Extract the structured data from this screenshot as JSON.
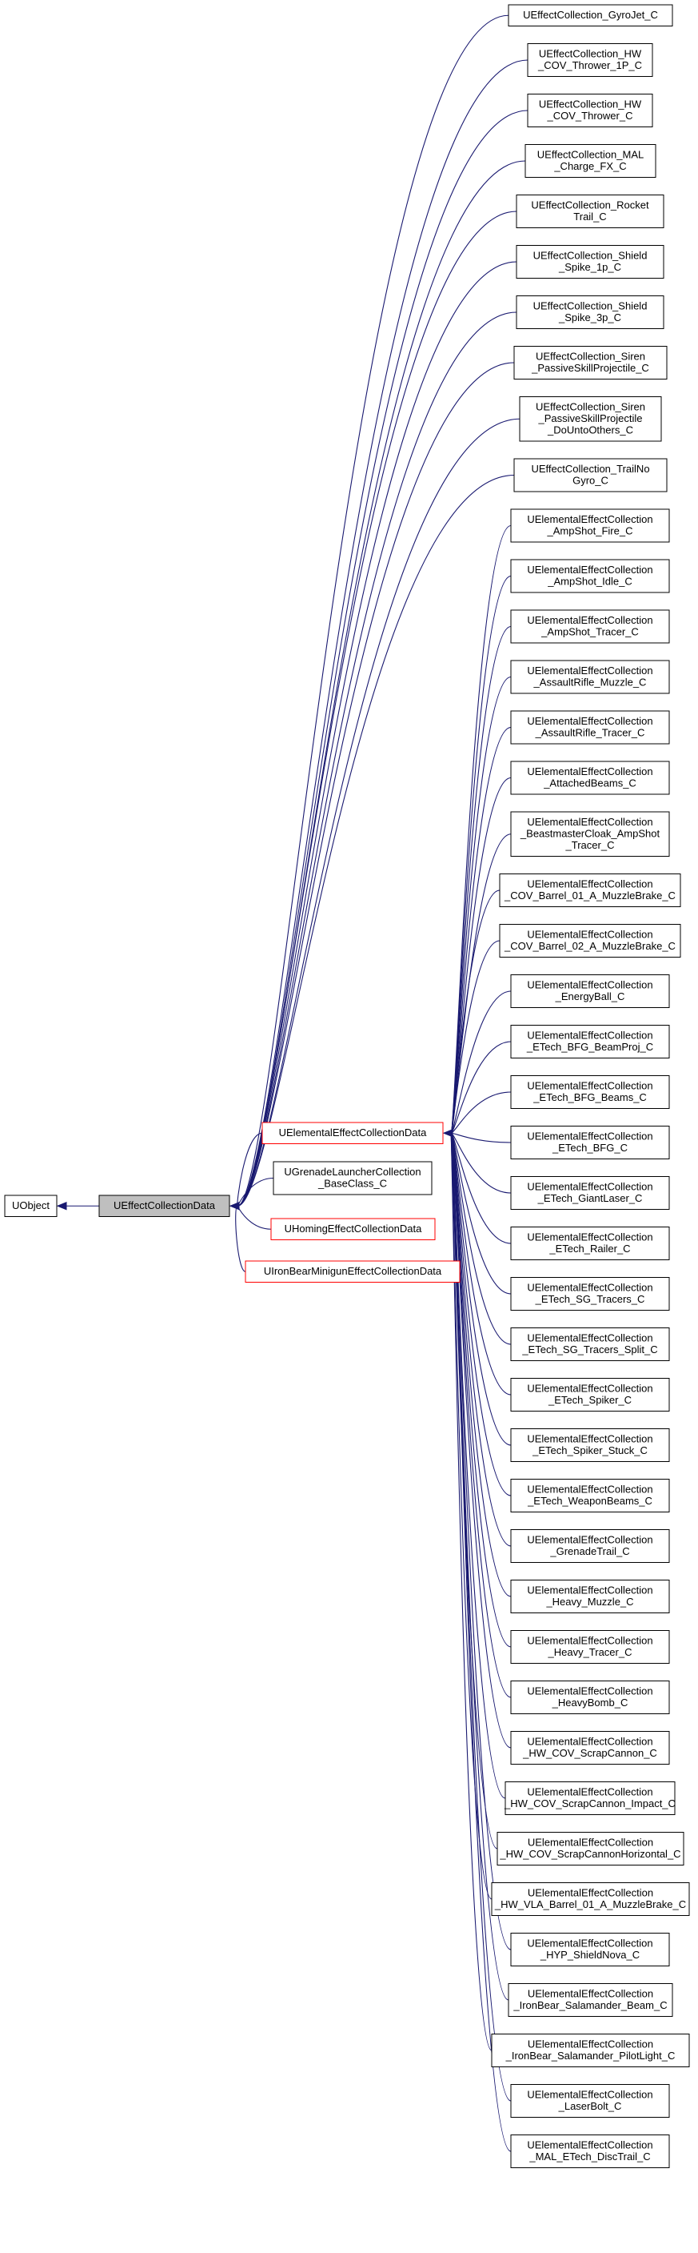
{
  "diagram": {
    "root": {
      "lines": [
        "UObject"
      ]
    },
    "base": {
      "lines": [
        "UEffectCollectionData"
      ]
    },
    "mid_children": [
      {
        "id": "elemental",
        "lines": [
          "UElementalEffectCollectionData"
        ],
        "style": "red"
      },
      {
        "id": "grenade",
        "lines": [
          "UGrenadeLauncherCollection",
          "_BaseClass_C"
        ],
        "style": "black"
      },
      {
        "id": "homing",
        "lines": [
          "UHomingEffectCollectionData"
        ],
        "style": "red"
      },
      {
        "id": "ironbear",
        "lines": [
          "UIronBearMinigunEffectCollectionData"
        ],
        "style": "red"
      }
    ],
    "base_leaves": [
      {
        "lines": [
          "UEffectCollection_GyroJet_C"
        ]
      },
      {
        "lines": [
          "UEffectCollection_HW",
          "_COV_Thrower_1P_C"
        ]
      },
      {
        "lines": [
          "UEffectCollection_HW",
          "_COV_Thrower_C"
        ]
      },
      {
        "lines": [
          "UEffectCollection_MAL",
          "_Charge_FX_C"
        ]
      },
      {
        "lines": [
          "UEffectCollection_Rocket",
          "Trail_C"
        ]
      },
      {
        "lines": [
          "UEffectCollection_Shield",
          "_Spike_1p_C"
        ]
      },
      {
        "lines": [
          "UEffectCollection_Shield",
          "_Spike_3p_C"
        ]
      },
      {
        "lines": [
          "UEffectCollection_Siren",
          "_PassiveSkillProjectile_C"
        ]
      },
      {
        "lines": [
          "UEffectCollection_Siren",
          "_PassiveSkillProjectile",
          "_DoUntoOthers_C"
        ]
      },
      {
        "lines": [
          "UEffectCollection_TrailNo",
          "Gyro_C"
        ]
      }
    ],
    "elemental_leaves": [
      {
        "lines": [
          "UElementalEffectCollection",
          "_AmpShot_Fire_C"
        ]
      },
      {
        "lines": [
          "UElementalEffectCollection",
          "_AmpShot_Idle_C"
        ]
      },
      {
        "lines": [
          "UElementalEffectCollection",
          "_AmpShot_Tracer_C"
        ]
      },
      {
        "lines": [
          "UElementalEffectCollection",
          "_AssaultRifle_Muzzle_C"
        ]
      },
      {
        "lines": [
          "UElementalEffectCollection",
          "_AssaultRifle_Tracer_C"
        ]
      },
      {
        "lines": [
          "UElementalEffectCollection",
          "_AttachedBeams_C"
        ]
      },
      {
        "lines": [
          "UElementalEffectCollection",
          "_BeastmasterCloak_AmpShot",
          "_Tracer_C"
        ]
      },
      {
        "lines": [
          "UElementalEffectCollection",
          "_COV_Barrel_01_A_MuzzleBrake_C"
        ]
      },
      {
        "lines": [
          "UElementalEffectCollection",
          "_COV_Barrel_02_A_MuzzleBrake_C"
        ]
      },
      {
        "lines": [
          "UElementalEffectCollection",
          "_EnergyBall_C"
        ]
      },
      {
        "lines": [
          "UElementalEffectCollection",
          "_ETech_BFG_BeamProj_C"
        ]
      },
      {
        "lines": [
          "UElementalEffectCollection",
          "_ETech_BFG_Beams_C"
        ]
      },
      {
        "lines": [
          "UElementalEffectCollection",
          "_ETech_BFG_C"
        ]
      },
      {
        "lines": [
          "UElementalEffectCollection",
          "_ETech_GiantLaser_C"
        ]
      },
      {
        "lines": [
          "UElementalEffectCollection",
          "_ETech_Railer_C"
        ]
      },
      {
        "lines": [
          "UElementalEffectCollection",
          "_ETech_SG_Tracers_C"
        ]
      },
      {
        "lines": [
          "UElementalEffectCollection",
          "_ETech_SG_Tracers_Split_C"
        ]
      },
      {
        "lines": [
          "UElementalEffectCollection",
          "_ETech_Spiker_C"
        ]
      },
      {
        "lines": [
          "UElementalEffectCollection",
          "_ETech_Spiker_Stuck_C"
        ]
      },
      {
        "lines": [
          "UElementalEffectCollection",
          "_ETech_WeaponBeams_C"
        ]
      },
      {
        "lines": [
          "UElementalEffectCollection",
          "_GrenadeTrail_C"
        ]
      },
      {
        "lines": [
          "UElementalEffectCollection",
          "_Heavy_Muzzle_C"
        ]
      },
      {
        "lines": [
          "UElementalEffectCollection",
          "_Heavy_Tracer_C"
        ]
      },
      {
        "lines": [
          "UElementalEffectCollection",
          "_HeavyBomb_C"
        ]
      },
      {
        "lines": [
          "UElementalEffectCollection",
          "_HW_COV_ScrapCannon_C"
        ]
      },
      {
        "lines": [
          "UElementalEffectCollection",
          "_HW_COV_ScrapCannon_Impact_C"
        ]
      },
      {
        "lines": [
          "UElementalEffectCollection",
          "_HW_COV_ScrapCannonHorizontal_C"
        ]
      },
      {
        "lines": [
          "UElementalEffectCollection",
          "_HW_VLA_Barrel_01_A_MuzzleBrake_C"
        ]
      },
      {
        "lines": [
          "UElementalEffectCollection",
          "_HYP_ShieldNova_C"
        ]
      },
      {
        "lines": [
          "UElementalEffectCollection",
          "_IronBear_Salamander_Beam_C"
        ]
      },
      {
        "lines": [
          "UElementalEffectCollection",
          "_IronBear_Salamander_PilotLight_C"
        ]
      },
      {
        "lines": [
          "UElementalEffectCollection",
          "_LaserBolt_C"
        ]
      },
      {
        "lines": [
          "UElementalEffectCollection",
          "_MAL_ETech_DiscTrail_C"
        ]
      }
    ],
    "colors": {
      "edge": "#191970",
      "box_border": "#000000",
      "red_border": "#ff0000",
      "base_fill": "#bfbfbf",
      "background": "#ffffff"
    }
  }
}
